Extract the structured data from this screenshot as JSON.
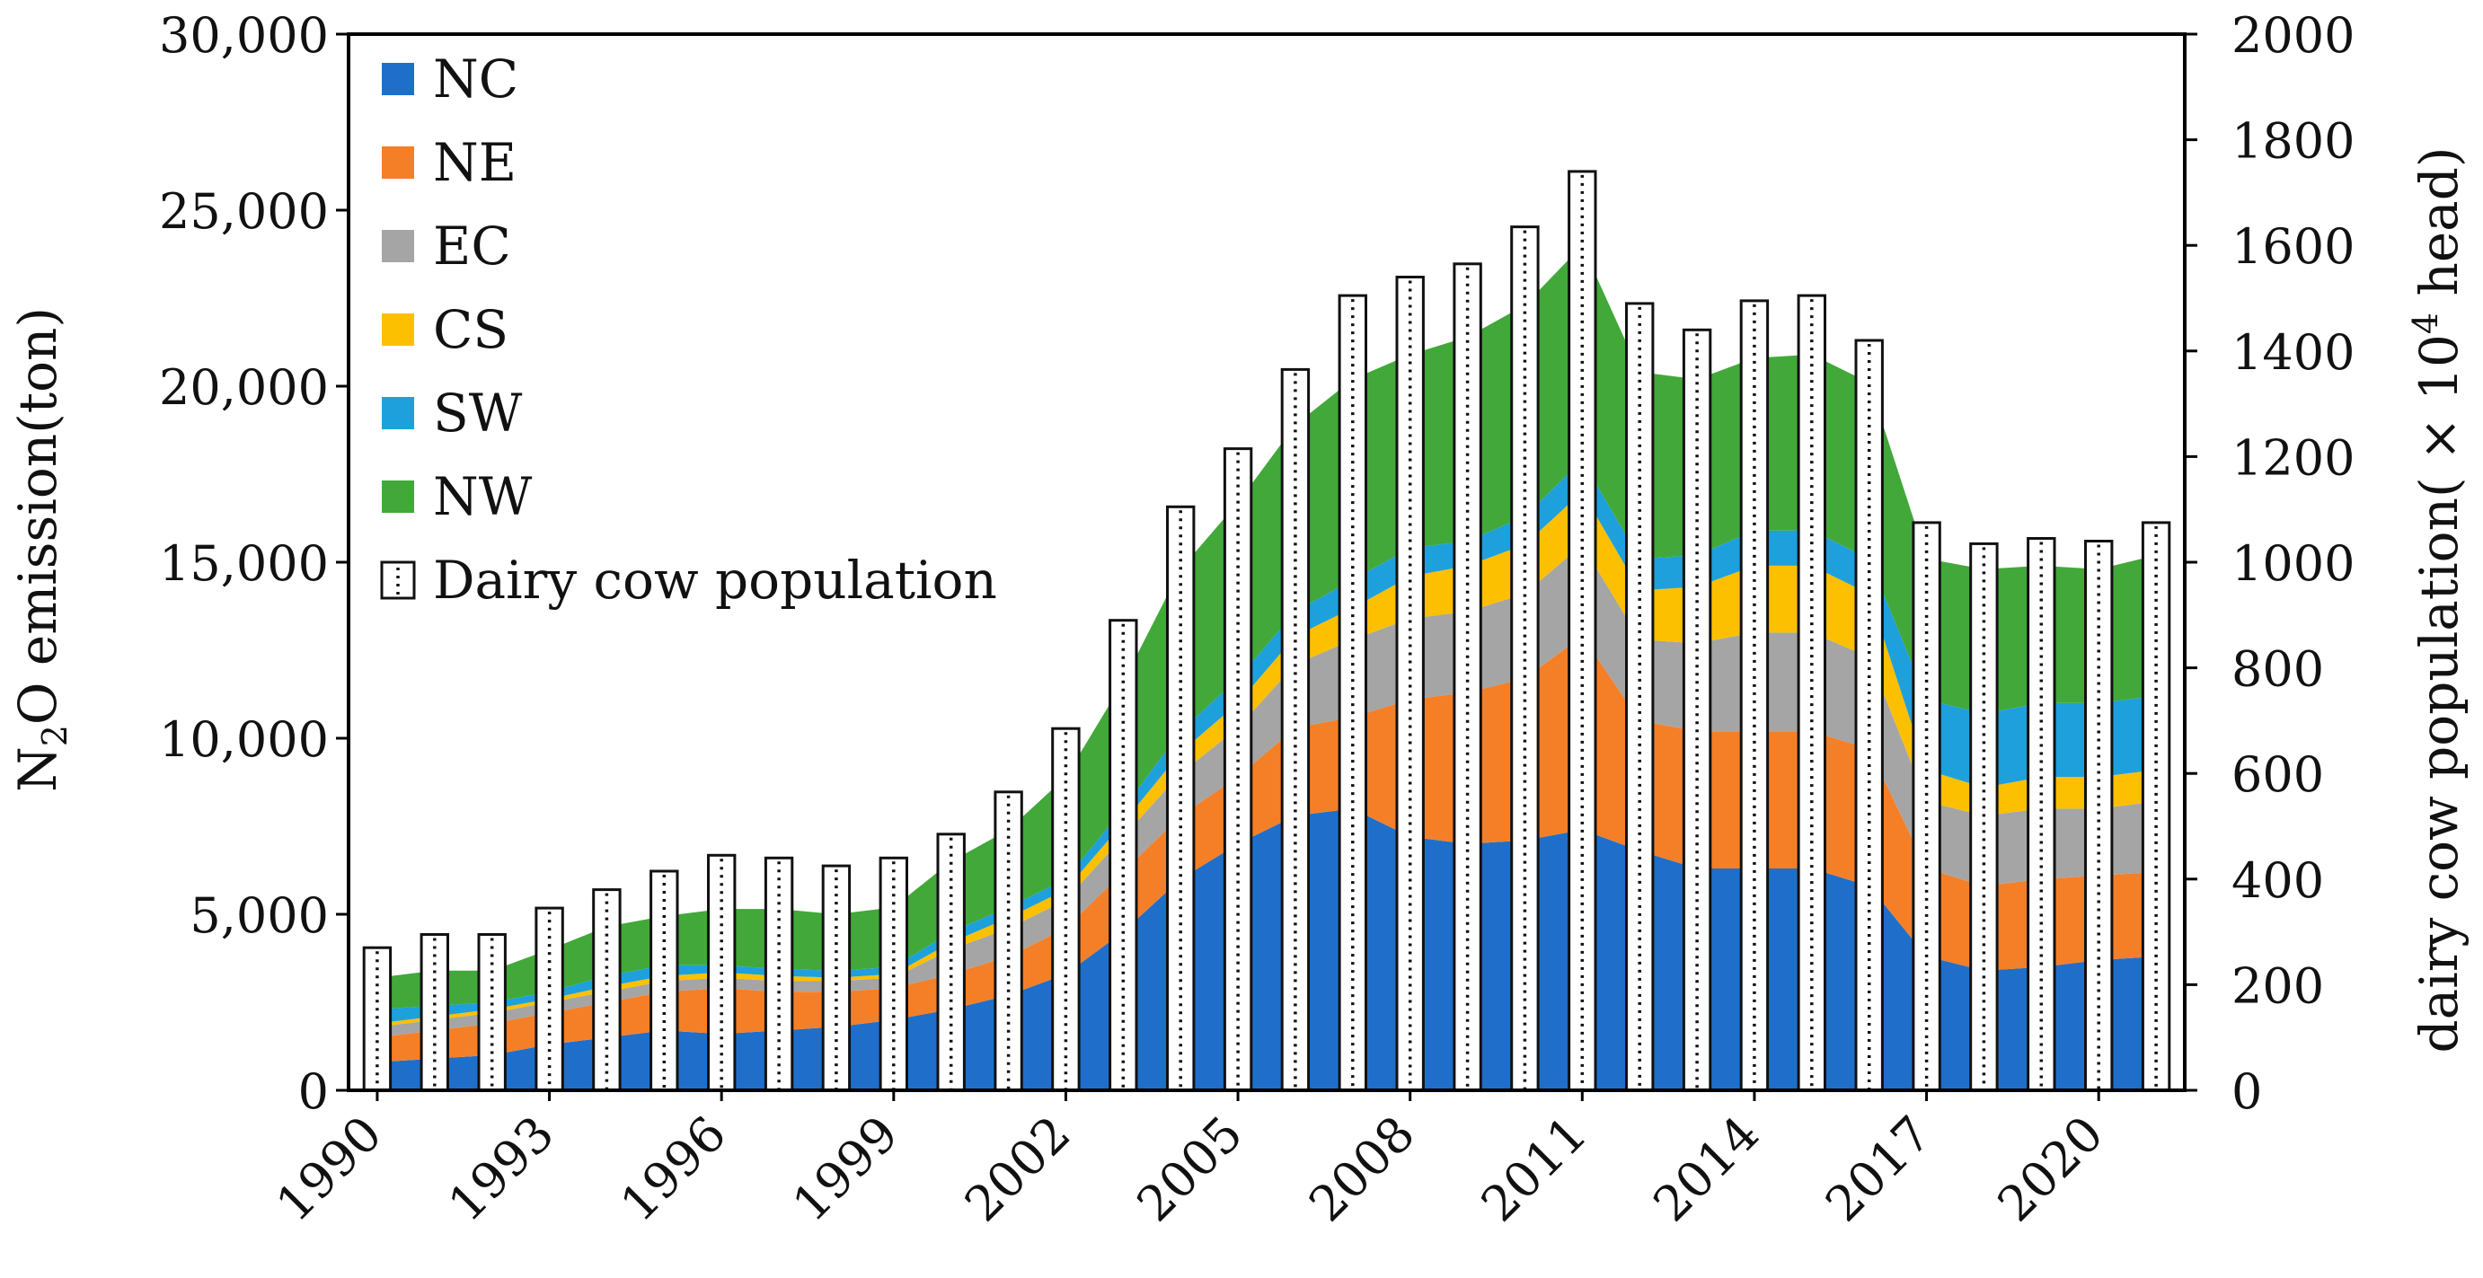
{
  "chart_data": {
    "type": "area",
    "secondary_type": "bar",
    "title": "",
    "x": [
      1990,
      1991,
      1992,
      1993,
      1994,
      1995,
      1996,
      1997,
      1998,
      1999,
      2000,
      2001,
      2002,
      2003,
      2004,
      2005,
      2006,
      2007,
      2008,
      2009,
      2010,
      2011,
      2012,
      2013,
      2014,
      2015,
      2016,
      2017,
      2018,
      2019,
      2020,
      2021
    ],
    "xtick_labels": [
      "1990",
      "1993",
      "1996",
      "1999",
      "2002",
      "2005",
      "2008",
      "2011",
      "2014",
      "2017",
      "2020"
    ],
    "xlim": [
      1989.5,
      2021.5
    ],
    "ylabel_left_main": "N",
    "ylabel_left_sub": "2",
    "ylabel_left_rest": "O emission(ton)",
    "ylabel_right_main": "dairy cow population( × 10",
    "ylabel_right_sup": "4",
    "ylabel_right_rest": " head)",
    "ylim_left": [
      0,
      30000
    ],
    "ylim_right": [
      0,
      2000
    ],
    "yticks_left": [
      "0",
      "5,000",
      "10,000",
      "15,000",
      "20,000",
      "25,000",
      "30,000"
    ],
    "yticks_left_values": [
      0,
      5000,
      10000,
      15000,
      20000,
      25000,
      30000
    ],
    "yticks_right": [
      "0",
      "200",
      "400",
      "600",
      "800",
      "1000",
      "1200",
      "1400",
      "1600",
      "1800",
      "2000"
    ],
    "yticks_right_values": [
      0,
      200,
      400,
      600,
      800,
      1000,
      1200,
      1400,
      1600,
      1800,
      2000
    ],
    "grid": false,
    "legend_position": "top-left",
    "series": [
      {
        "name": "NC",
        "color": "#1f6fca",
        "axis": "left",
        "values": [
          800,
          900,
          1000,
          1300,
          1500,
          1700,
          1600,
          1700,
          1800,
          2000,
          2300,
          2700,
          3300,
          4500,
          6000,
          7000,
          7800,
          8000,
          7200,
          7000,
          7100,
          7400,
          6800,
          6300,
          6300,
          6300,
          5800,
          3800,
          3400,
          3500,
          3700,
          3800
        ]
      },
      {
        "name": "NE",
        "color": "#f57f27",
        "axis": "left",
        "values": [
          700,
          800,
          900,
          900,
          1000,
          1100,
          1300,
          1100,
          1000,
          900,
          1000,
          1100,
          1300,
          1700,
          1800,
          1900,
          2500,
          2600,
          3900,
          4300,
          4600,
          5500,
          3700,
          3900,
          3900,
          3900,
          3900,
          2500,
          2400,
          2500,
          2400,
          2400
        ]
      },
      {
        "name": "EC",
        "color": "#a5a5a5",
        "axis": "left",
        "values": [
          300,
          300,
          300,
          300,
          300,
          300,
          300,
          300,
          300,
          300,
          700,
          800,
          800,
          1000,
          1200,
          1400,
          1800,
          2200,
          2300,
          2300,
          2400,
          2600,
          2300,
          2500,
          2800,
          2800,
          2600,
          1900,
          2000,
          2000,
          1900,
          2000
        ]
      },
      {
        "name": "CS",
        "color": "#fcc000",
        "axis": "left",
        "values": [
          100,
          100,
          100,
          100,
          150,
          150,
          150,
          150,
          100,
          100,
          200,
          300,
          300,
          400,
          600,
          700,
          800,
          900,
          1200,
          1300,
          1400,
          1500,
          1400,
          1600,
          1900,
          1900,
          1800,
          900,
          800,
          900,
          900,
          900
        ]
      },
      {
        "name": "SW",
        "color": "#1ea0dc",
        "axis": "left",
        "values": [
          400,
          300,
          200,
          200,
          300,
          300,
          200,
          200,
          200,
          200,
          300,
          300,
          300,
          400,
          600,
          700,
          700,
          800,
          800,
          700,
          800,
          900,
          900,
          900,
          1000,
          1000,
          1000,
          2000,
          2100,
          2100,
          2100,
          2100
        ]
      },
      {
        "name": "NW",
        "color": "#42a83a",
        "axis": "left",
        "values": [
          900,
          1000,
          900,
          1200,
          1400,
          1400,
          1600,
          1700,
          1600,
          1700,
          2000,
          2200,
          2900,
          3600,
          4600,
          5000,
          5300,
          5700,
          5500,
          5800,
          6000,
          6100,
          5300,
          5000,
          4900,
          5000,
          5000,
          4000,
          4100,
          3900,
          3800,
          4000
        ]
      },
      {
        "name": "Dairy cow population",
        "type": "bar",
        "axis": "right",
        "color": "#ffffff",
        "values": [
          270,
          295,
          295,
          345,
          380,
          415,
          445,
          440,
          425,
          440,
          485,
          565,
          685,
          890,
          1105,
          1215,
          1365,
          1505,
          1540,
          1565,
          1635,
          1740,
          1490,
          1440,
          1495,
          1505,
          1420,
          1075,
          1035,
          1045,
          1040,
          1075
        ]
      }
    ]
  }
}
